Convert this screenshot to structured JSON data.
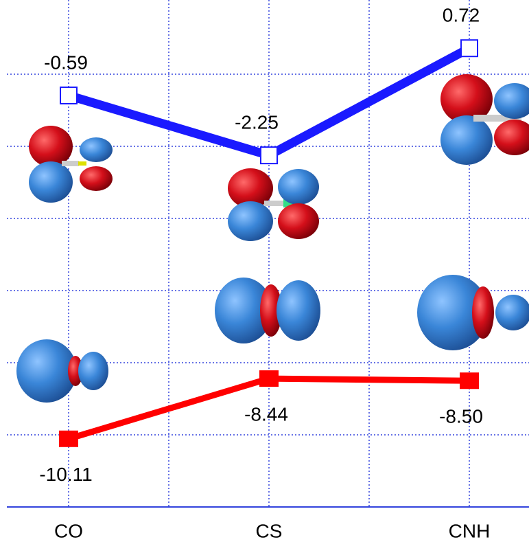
{
  "chart_data": {
    "type": "line",
    "categories": [
      "CO",
      "CS",
      "CNH"
    ],
    "series": [
      {
        "color": "#1a1aff",
        "marker": "hollow-square",
        "values": [
          -0.59,
          -2.25,
          0.72
        ],
        "value_labels": [
          "-0.59",
          "-2.25",
          "0.72"
        ]
      },
      {
        "color": "#ff0000",
        "marker": "filled-square",
        "values": [
          -10.11,
          -8.44,
          -8.5
        ],
        "value_labels": [
          "-10.11",
          "-8.44",
          "-8.50"
        ]
      }
    ],
    "ylim": [
      -12,
      2
    ],
    "ygrid": [
      -12,
      -10,
      -8,
      -6,
      -4,
      -2,
      0
    ],
    "grid": true
  }
}
